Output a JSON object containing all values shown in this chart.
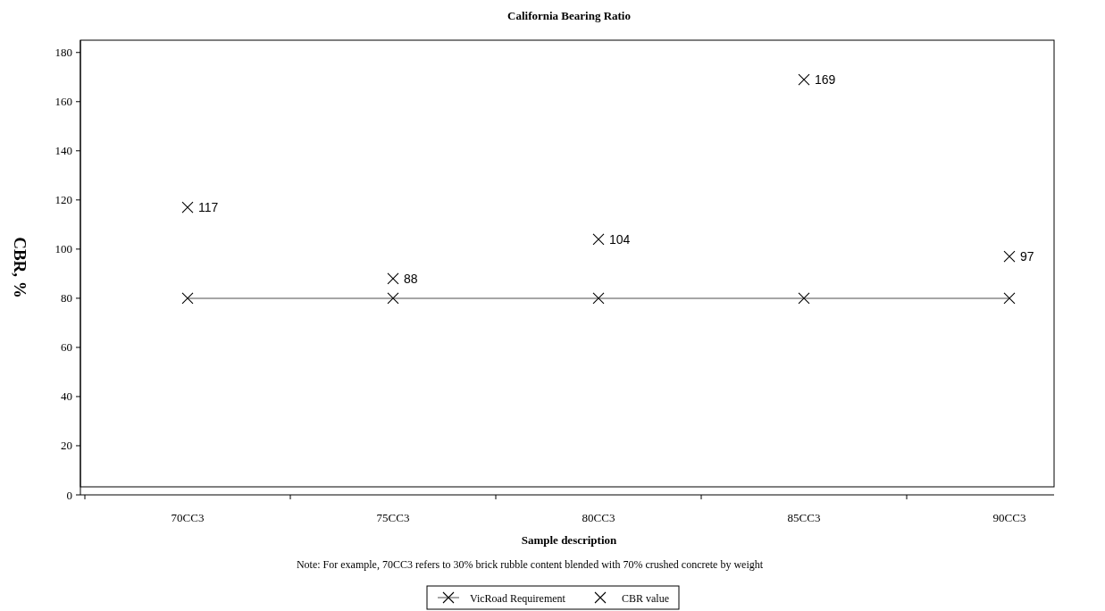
{
  "chart_data": {
    "type": "line",
    "title": "California Bearing Ratio",
    "xlabel": "Sample description",
    "ylabel": "CBR, %",
    "annotations": [
      "Note: For example, 70CC3 refers to 30% brick rubble content blended with 70% crushed concrete by weight"
    ],
    "categories": [
      "70CC3",
      "75CC3",
      "80CC3",
      "85CC3",
      "90CC3"
    ],
    "series": [
      {
        "name": "VicRoad Requirement",
        "color": "#000000",
        "marker": "cross",
        "values": [
          80,
          80,
          80,
          80,
          80
        ]
      },
      {
        "name": "CBR value",
        "type": "scatter",
        "color": "#000000",
        "marker": "cross",
        "values": [
          117,
          88,
          104,
          169,
          97
        ],
        "value_labels": [
          "117",
          "88",
          "104",
          "169",
          "97"
        ]
      }
    ],
    "ylim": [
      0,
      185
    ],
    "yticks": [
      0,
      20,
      40,
      60,
      80,
      100,
      120,
      140,
      160,
      180
    ],
    "legend": "bottom",
    "grid": false
  }
}
